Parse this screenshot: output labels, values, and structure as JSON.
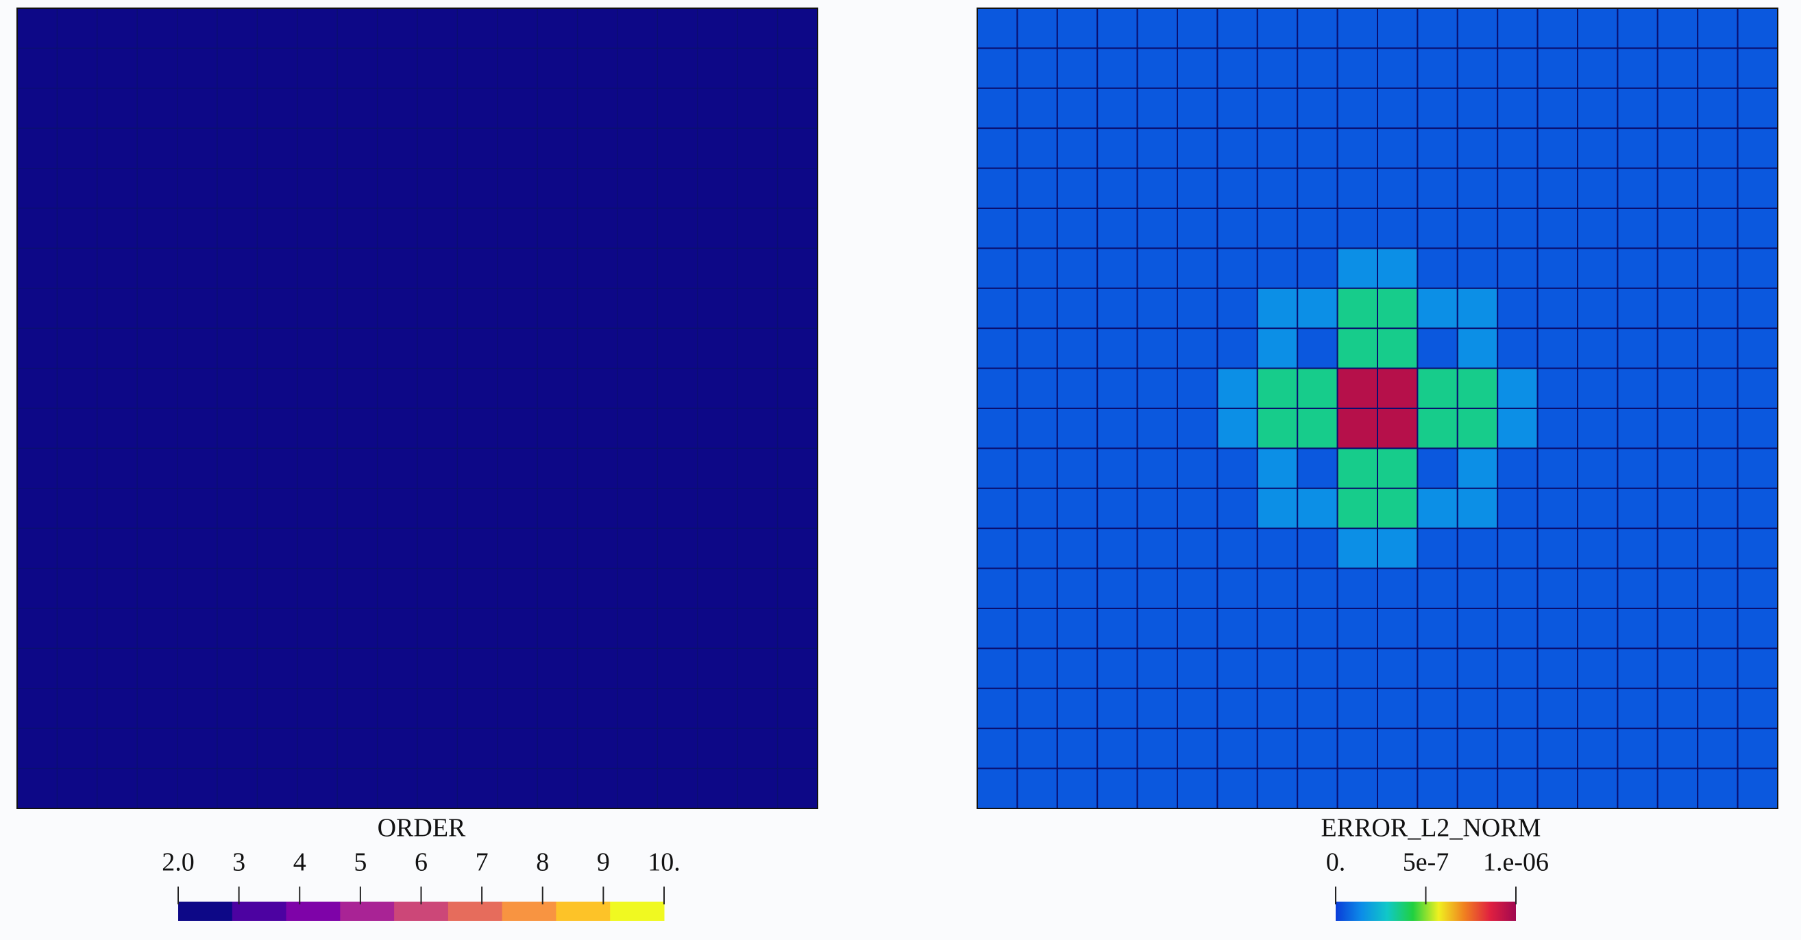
{
  "chart_data": [
    {
      "type": "heatmap",
      "title": "ORDER",
      "clim": [
        2,
        10
      ],
      "discrete": true,
      "colormap": [
        "#0d0887",
        "#4c02a1",
        "#7e03a8",
        "#a92395",
        "#cc4778",
        "#e66c5c",
        "#f89441",
        "#fdc328",
        "#f0f921"
      ],
      "ticks": [
        {
          "value": 2,
          "label": "2.0"
        },
        3,
        4,
        5,
        6,
        7,
        8,
        9,
        {
          "value": 10,
          "label": "10."
        }
      ],
      "values": [
        [
          2,
          2,
          2,
          2,
          2,
          2,
          2,
          2,
          2,
          2,
          2,
          2,
          2,
          2,
          2,
          2,
          2,
          2,
          2,
          2
        ],
        [
          2,
          2,
          2,
          2,
          2,
          2,
          2,
          2,
          2,
          2,
          2,
          2,
          2,
          2,
          2,
          2,
          2,
          2,
          2,
          2
        ],
        [
          2,
          2,
          2,
          2,
          2,
          2,
          2,
          2,
          2,
          2,
          2,
          2,
          2,
          2,
          2,
          2,
          2,
          2,
          2,
          2
        ],
        [
          2,
          2,
          2,
          2,
          2,
          2,
          2,
          2,
          2,
          2,
          2,
          2,
          2,
          2,
          2,
          2,
          2,
          2,
          2,
          2
        ],
        [
          2,
          2,
          2,
          2,
          2,
          2,
          2,
          2,
          2,
          2,
          2,
          2,
          2,
          2,
          2,
          2,
          2,
          2,
          2,
          2
        ],
        [
          2,
          2,
          2,
          2,
          2,
          2,
          2,
          2,
          2,
          2,
          2,
          2,
          2,
          2,
          2,
          2,
          2,
          2,
          2,
          2
        ],
        [
          2,
          2,
          2,
          2,
          2,
          2,
          2,
          2,
          2,
          2,
          2,
          2,
          2,
          2,
          2,
          2,
          2,
          2,
          2,
          2
        ],
        [
          2,
          2,
          2,
          2,
          2,
          2,
          2,
          2,
          2,
          2,
          2,
          2,
          2,
          2,
          2,
          2,
          2,
          2,
          2,
          2
        ],
        [
          2,
          2,
          2,
          2,
          2,
          2,
          2,
          2,
          2,
          2,
          2,
          2,
          2,
          2,
          2,
          2,
          2,
          2,
          2,
          2
        ],
        [
          2,
          2,
          2,
          2,
          2,
          2,
          2,
          2,
          2,
          2,
          2,
          2,
          2,
          2,
          2,
          2,
          2,
          2,
          2,
          2
        ],
        [
          2,
          2,
          2,
          2,
          2,
          2,
          2,
          2,
          2,
          2,
          2,
          2,
          2,
          2,
          2,
          2,
          2,
          2,
          2,
          2
        ],
        [
          2,
          2,
          2,
          2,
          2,
          2,
          2,
          2,
          2,
          2,
          2,
          2,
          2,
          2,
          2,
          2,
          2,
          2,
          2,
          2
        ],
        [
          2,
          2,
          2,
          2,
          2,
          2,
          2,
          2,
          2,
          2,
          2,
          2,
          2,
          2,
          2,
          2,
          2,
          2,
          2,
          2
        ],
        [
          2,
          2,
          2,
          2,
          2,
          2,
          2,
          2,
          2,
          2,
          2,
          2,
          2,
          2,
          2,
          2,
          2,
          2,
          2,
          2
        ],
        [
          2,
          2,
          2,
          2,
          2,
          2,
          2,
          2,
          2,
          2,
          2,
          2,
          2,
          2,
          2,
          2,
          2,
          2,
          2,
          2
        ],
        [
          2,
          2,
          2,
          2,
          2,
          2,
          2,
          2,
          2,
          2,
          2,
          2,
          2,
          2,
          2,
          2,
          2,
          2,
          2,
          2
        ],
        [
          2,
          2,
          2,
          2,
          2,
          2,
          2,
          2,
          2,
          2,
          2,
          2,
          2,
          2,
          2,
          2,
          2,
          2,
          2,
          2
        ],
        [
          2,
          2,
          2,
          2,
          2,
          2,
          2,
          2,
          2,
          2,
          2,
          2,
          2,
          2,
          2,
          2,
          2,
          2,
          2,
          2
        ],
        [
          2,
          2,
          2,
          2,
          2,
          2,
          2,
          2,
          2,
          2,
          2,
          2,
          2,
          2,
          2,
          2,
          2,
          2,
          2,
          2
        ],
        [
          2,
          2,
          2,
          2,
          2,
          2,
          2,
          2,
          2,
          2,
          2,
          2,
          2,
          2,
          2,
          2,
          2,
          2,
          2,
          2
        ]
      ]
    },
    {
      "type": "heatmap",
      "title": "ERROR_L2_NORM",
      "clim": [
        0,
        1e-06
      ],
      "discrete": false,
      "colormap": [
        "#0a3cd8",
        "#0c8ce8",
        "#10c8c8",
        "#20d040",
        "#f0f020",
        "#f08020",
        "#e02040",
        "#a00850"
      ],
      "ticks": [
        {
          "value": 0,
          "label": "0."
        },
        {
          "value": 5e-07,
          "label": "5e-7"
        },
        {
          "value": 1e-06,
          "label": "1.e-06"
        }
      ],
      "values": [
        [
          5e-08,
          5e-08,
          5e-08,
          5e-08,
          5e-08,
          5e-08,
          5e-08,
          5e-08,
          5e-08,
          5e-08,
          5e-08,
          5e-08,
          5e-08,
          5e-08,
          5e-08,
          5e-08,
          5e-08,
          5e-08,
          5e-08,
          5e-08
        ],
        [
          5e-08,
          5e-08,
          5e-08,
          5e-08,
          5e-08,
          5e-08,
          5e-08,
          5e-08,
          5e-08,
          5e-08,
          5e-08,
          5e-08,
          5e-08,
          5e-08,
          5e-08,
          5e-08,
          5e-08,
          5e-08,
          5e-08,
          5e-08
        ],
        [
          5e-08,
          5e-08,
          5e-08,
          5e-08,
          5e-08,
          5e-08,
          5e-08,
          5e-08,
          5e-08,
          5e-08,
          5e-08,
          5e-08,
          5e-08,
          5e-08,
          5e-08,
          5e-08,
          5e-08,
          5e-08,
          5e-08,
          5e-08
        ],
        [
          5e-08,
          5e-08,
          5e-08,
          5e-08,
          5e-08,
          5e-08,
          5e-08,
          5e-08,
          5e-08,
          5e-08,
          5e-08,
          5e-08,
          5e-08,
          5e-08,
          5e-08,
          5e-08,
          5e-08,
          5e-08,
          5e-08,
          5e-08
        ],
        [
          5e-08,
          5e-08,
          5e-08,
          5e-08,
          5e-08,
          5e-08,
          5e-08,
          5e-08,
          5e-08,
          5e-08,
          5e-08,
          5e-08,
          5e-08,
          5e-08,
          5e-08,
          5e-08,
          5e-08,
          5e-08,
          5e-08,
          5e-08
        ],
        [
          5e-08,
          5e-08,
          5e-08,
          5e-08,
          5e-08,
          5e-08,
          5e-08,
          5e-08,
          5e-08,
          5e-08,
          5e-08,
          5e-08,
          5e-08,
          5e-08,
          5e-08,
          5e-08,
          5e-08,
          5e-08,
          5e-08,
          5e-08
        ],
        [
          5e-08,
          5e-08,
          5e-08,
          5e-08,
          5e-08,
          5e-08,
          5e-08,
          5e-08,
          5e-08,
          1.5e-07,
          1.5e-07,
          5e-08,
          5e-08,
          5e-08,
          5e-08,
          5e-08,
          5e-08,
          5e-08,
          5e-08,
          5e-08
        ],
        [
          5e-08,
          5e-08,
          5e-08,
          5e-08,
          5e-08,
          5e-08,
          5e-08,
          1.5e-07,
          1.5e-07,
          3.5e-07,
          3.5e-07,
          1.5e-07,
          1.5e-07,
          5e-08,
          5e-08,
          5e-08,
          5e-08,
          5e-08,
          5e-08,
          5e-08
        ],
        [
          5e-08,
          5e-08,
          5e-08,
          5e-08,
          5e-08,
          5e-08,
          5e-08,
          1.5e-07,
          5e-08,
          3.5e-07,
          3.5e-07,
          5e-08,
          1.5e-07,
          5e-08,
          5e-08,
          5e-08,
          5e-08,
          5e-08,
          5e-08,
          5e-08
        ],
        [
          5e-08,
          5e-08,
          5e-08,
          5e-08,
          5e-08,
          5e-08,
          1.5e-07,
          3.5e-07,
          3.5e-07,
          9.5e-07,
          9.5e-07,
          3.5e-07,
          3.5e-07,
          1.5e-07,
          5e-08,
          5e-08,
          5e-08,
          5e-08,
          5e-08,
          5e-08
        ],
        [
          5e-08,
          5e-08,
          5e-08,
          5e-08,
          5e-08,
          5e-08,
          1.5e-07,
          3.5e-07,
          3.5e-07,
          9.5e-07,
          9.5e-07,
          3.5e-07,
          3.5e-07,
          1.5e-07,
          5e-08,
          5e-08,
          5e-08,
          5e-08,
          5e-08,
          5e-08
        ],
        [
          5e-08,
          5e-08,
          5e-08,
          5e-08,
          5e-08,
          5e-08,
          5e-08,
          1.5e-07,
          5e-08,
          3.5e-07,
          3.5e-07,
          5e-08,
          1.5e-07,
          5e-08,
          5e-08,
          5e-08,
          5e-08,
          5e-08,
          5e-08,
          5e-08
        ],
        [
          5e-08,
          5e-08,
          5e-08,
          5e-08,
          5e-08,
          5e-08,
          5e-08,
          1.5e-07,
          1.5e-07,
          3.5e-07,
          3.5e-07,
          1.5e-07,
          1.5e-07,
          5e-08,
          5e-08,
          5e-08,
          5e-08,
          5e-08,
          5e-08,
          5e-08
        ],
        [
          5e-08,
          5e-08,
          5e-08,
          5e-08,
          5e-08,
          5e-08,
          5e-08,
          5e-08,
          5e-08,
          1.5e-07,
          1.5e-07,
          5e-08,
          5e-08,
          5e-08,
          5e-08,
          5e-08,
          5e-08,
          5e-08,
          5e-08,
          5e-08
        ],
        [
          5e-08,
          5e-08,
          5e-08,
          5e-08,
          5e-08,
          5e-08,
          5e-08,
          5e-08,
          5e-08,
          5e-08,
          5e-08,
          5e-08,
          5e-08,
          5e-08,
          5e-08,
          5e-08,
          5e-08,
          5e-08,
          5e-08,
          5e-08
        ],
        [
          5e-08,
          5e-08,
          5e-08,
          5e-08,
          5e-08,
          5e-08,
          5e-08,
          5e-08,
          5e-08,
          5e-08,
          5e-08,
          5e-08,
          5e-08,
          5e-08,
          5e-08,
          5e-08,
          5e-08,
          5e-08,
          5e-08,
          5e-08
        ],
        [
          5e-08,
          5e-08,
          5e-08,
          5e-08,
          5e-08,
          5e-08,
          5e-08,
          5e-08,
          5e-08,
          5e-08,
          5e-08,
          5e-08,
          5e-08,
          5e-08,
          5e-08,
          5e-08,
          5e-08,
          5e-08,
          5e-08,
          5e-08
        ],
        [
          5e-08,
          5e-08,
          5e-08,
          5e-08,
          5e-08,
          5e-08,
          5e-08,
          5e-08,
          5e-08,
          5e-08,
          5e-08,
          5e-08,
          5e-08,
          5e-08,
          5e-08,
          5e-08,
          5e-08,
          5e-08,
          5e-08,
          5e-08
        ],
        [
          5e-08,
          5e-08,
          5e-08,
          5e-08,
          5e-08,
          5e-08,
          5e-08,
          5e-08,
          5e-08,
          5e-08,
          5e-08,
          5e-08,
          5e-08,
          5e-08,
          5e-08,
          5e-08,
          5e-08,
          5e-08,
          5e-08,
          5e-08
        ],
        [
          5e-08,
          5e-08,
          5e-08,
          5e-08,
          5e-08,
          5e-08,
          5e-08,
          5e-08,
          5e-08,
          5e-08,
          5e-08,
          5e-08,
          5e-08,
          5e-08,
          5e-08,
          5e-08,
          5e-08,
          5e-08,
          5e-08,
          5e-08
        ]
      ]
    }
  ]
}
